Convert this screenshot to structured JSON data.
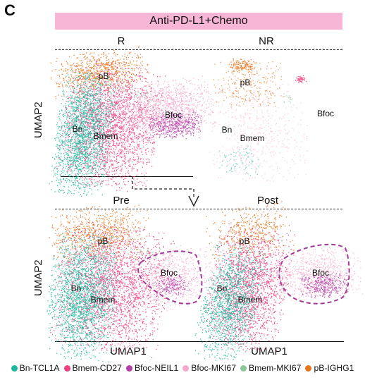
{
  "panel_letter": "C",
  "banner": "Anti-PD-L1+Chemo",
  "columns_top": [
    "R",
    "NR"
  ],
  "columns_bottom": [
    "Pre",
    "Post"
  ],
  "colors": {
    "Bn": "#1bb89e",
    "Bmem": "#ee3f7f",
    "BfocNEIL1": "#b440a8",
    "BfocMKI67": "#f5a8cc",
    "BmemMKI67": "#8fc59a",
    "pB": "#e8741c",
    "highlight": "#a03a96",
    "banner": "#f7b6d6"
  },
  "chart_data": [
    {
      "type": "scatter",
      "xlabel": "",
      "ylabel": "UMAP2",
      "panels": [
        {
          "name": "R",
          "cluster_labels": [
            "pB",
            "Bn",
            "Bmem",
            "Bfoc"
          ]
        },
        {
          "name": "NR",
          "cluster_labels": [
            "pB",
            "Bn",
            "Bmem",
            "Bfoc"
          ]
        }
      ]
    },
    {
      "type": "scatter",
      "xlabel": "UMAP1",
      "ylabel": "UMAP2",
      "panels": [
        {
          "name": "Pre",
          "cluster_labels": [
            "pB",
            "Bn",
            "Bmem",
            "Bfoc"
          ]
        },
        {
          "name": "Post",
          "cluster_labels": [
            "pB",
            "Bn",
            "Bmem",
            "Bfoc"
          ]
        }
      ]
    }
  ],
  "legend": [
    {
      "label": "Bn-TCL1A",
      "color": "#1bb89e"
    },
    {
      "label": "Bmem-CD27",
      "color": "#ee3f7f"
    },
    {
      "label": "Bfoc-NEIL1",
      "color": "#b440a8"
    },
    {
      "label": "Bfoc-MKI67",
      "color": "#f5a8cc"
    },
    {
      "label": "Bmem-MKI67",
      "color": "#8fc59a"
    },
    {
      "label": "pB-IGHG1",
      "color": "#e8741c"
    }
  ]
}
